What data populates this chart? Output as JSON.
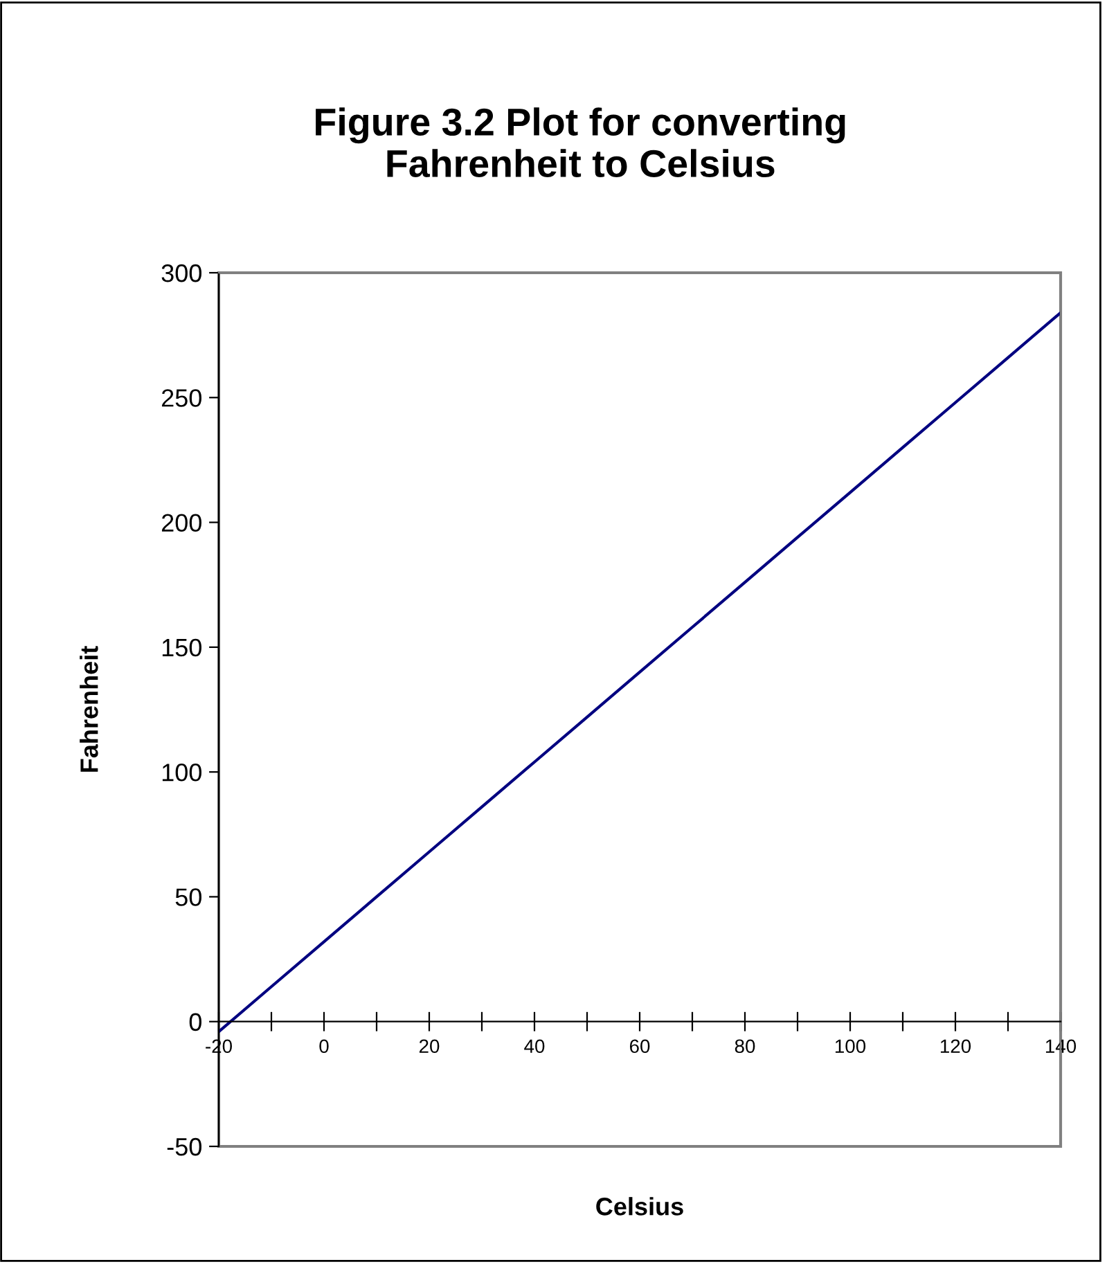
{
  "chart_data": {
    "type": "line",
    "title": "Figure 3.2 Plot for converting\nFahrenheit to Celsius",
    "xlabel": "Celsius",
    "ylabel": "Fahrenheit",
    "x": [
      -20,
      -10,
      0,
      10,
      20,
      30,
      40,
      50,
      60,
      70,
      80,
      90,
      100,
      110,
      120,
      130,
      140
    ],
    "series": [
      {
        "color": "#000080",
        "values": [
          -4,
          14,
          32,
          50,
          68,
          86,
          104,
          122,
          140,
          158,
          176,
          194,
          212,
          230,
          248,
          266,
          284
        ]
      }
    ],
    "xlim": [
      -20,
      140
    ],
    "xticks": [
      -20,
      {
        "value": -10,
        "label": null
      },
      0,
      {
        "value": 10,
        "label": null
      },
      20,
      {
        "value": 30,
        "label": null
      },
      40,
      {
        "value": 50,
        "label": null
      },
      60,
      {
        "value": 70,
        "label": null
      },
      80,
      {
        "value": 90,
        "label": null
      },
      100,
      {
        "value": 110,
        "label": null
      },
      120,
      {
        "value": 130,
        "label": null
      },
      140
    ],
    "ylim": [
      -50,
      300
    ],
    "yticks": [
      -50,
      0,
      50,
      100,
      150,
      200,
      250,
      300
    ],
    "grid": false,
    "legend": false,
    "marker": "none",
    "line_style": "solid"
  }
}
